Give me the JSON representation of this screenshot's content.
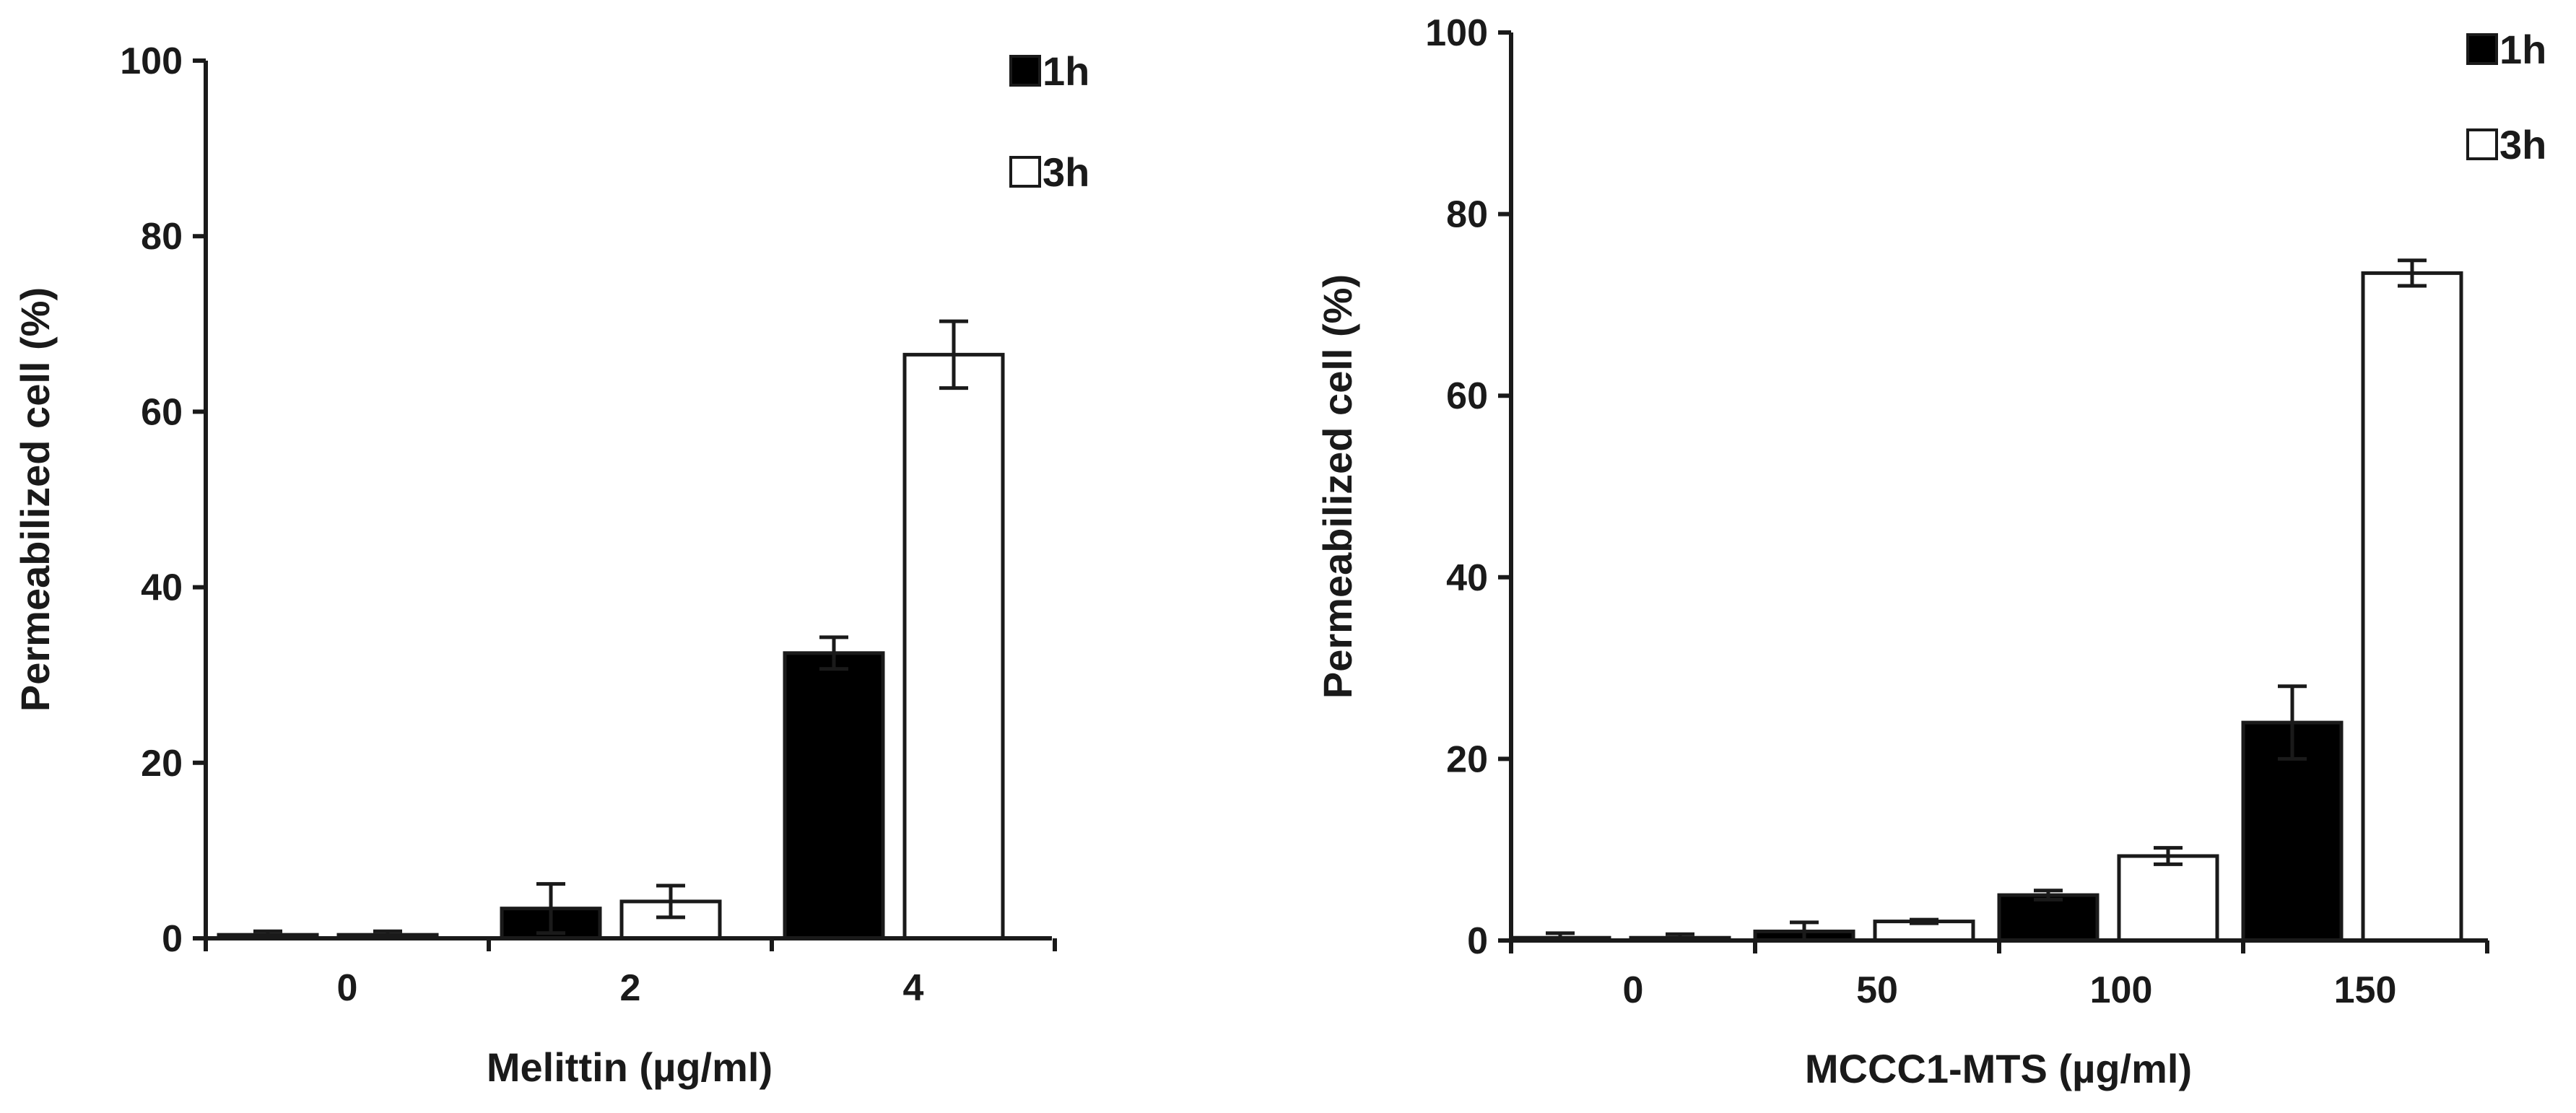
{
  "chart_data": [
    {
      "type": "bar",
      "title": "",
      "xlabel": "Melittin (µg/ml)",
      "ylabel": "Permeabilized cell (%)",
      "ylim": [
        0,
        100
      ],
      "yticks": [
        "0",
        "20",
        "40",
        "60",
        "80",
        "100"
      ],
      "categories": [
        "0",
        "2",
        "4"
      ],
      "series": [
        {
          "name": "1h",
          "values": [
            0.4,
            3.4,
            32.5
          ],
          "errors": [
            0.4,
            2.8,
            1.8
          ],
          "fill": "#000000"
        },
        {
          "name": "3h",
          "values": [
            0.4,
            4.2,
            66.5
          ],
          "errors": [
            0.4,
            1.8,
            3.8
          ],
          "fill": "#ffffff"
        }
      ],
      "legend": "top-right",
      "grid": false
    },
    {
      "type": "bar",
      "title": "",
      "xlabel": "MCCC1-MTS (µg/ml)",
      "ylabel": "Permeabilized cell (%)",
      "ylim": [
        0,
        100
      ],
      "yticks": [
        "0",
        "20",
        "40",
        "60",
        "80",
        "100"
      ],
      "categories": [
        "0",
        "50",
        "100",
        "150"
      ],
      "series": [
        {
          "name": "1h",
          "values": [
            0.3,
            1.0,
            5.0,
            24.0
          ],
          "errors": [
            0.5,
            1.0,
            0.5,
            4.0
          ],
          "fill": "#000000"
        },
        {
          "name": "3h",
          "values": [
            0.3,
            2.1,
            9.3,
            73.5
          ],
          "errors": [
            0.4,
            0.2,
            0.9,
            1.4
          ],
          "fill": "#ffffff"
        }
      ],
      "legend": "top-right",
      "grid": false
    }
  ]
}
